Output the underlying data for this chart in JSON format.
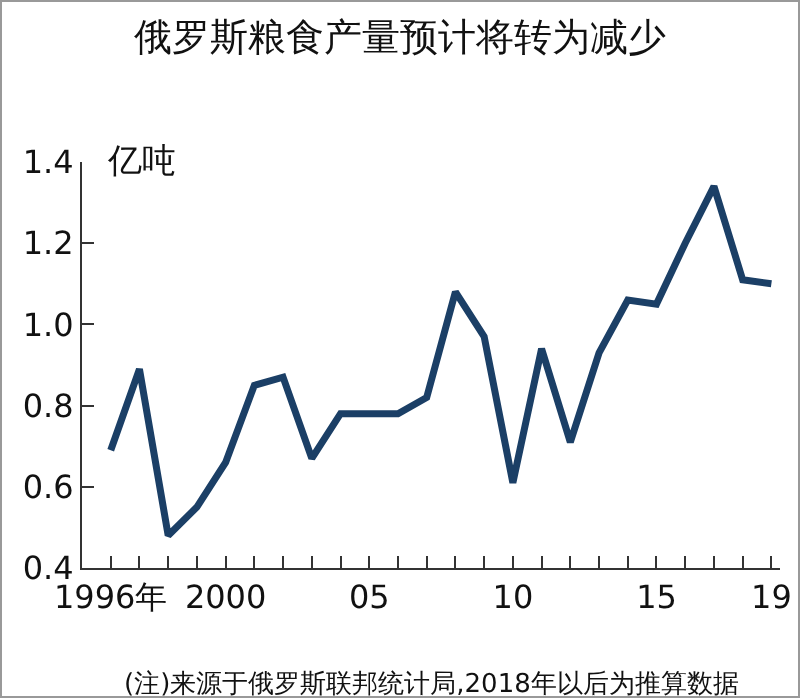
{
  "chart_data": {
    "type": "line",
    "title": "俄罗斯粮食产量预计将转为减少",
    "ylabel": "亿吨",
    "x": [
      1996,
      1997,
      1998,
      1999,
      2000,
      2001,
      2002,
      2003,
      2004,
      2005,
      2006,
      2007,
      2008,
      2009,
      2010,
      2011,
      2012,
      2013,
      2014,
      2015,
      2016,
      2017,
      2018,
      2019
    ],
    "series": [
      {
        "color": "#1b3f66",
        "values": [
          0.69,
          0.89,
          0.48,
          0.55,
          0.66,
          0.85,
          0.87,
          0.67,
          0.78,
          0.78,
          0.78,
          0.82,
          1.08,
          0.97,
          0.61,
          0.94,
          0.71,
          0.93,
          1.06,
          1.05,
          1.2,
          1.34,
          1.11,
          1.1
        ]
      }
    ],
    "xlim": [
      1995,
      2019.3
    ],
    "xticks": [
      {
        "value": 1996,
        "label": "1996年"
      },
      {
        "value": 1997,
        "label": null
      },
      {
        "value": 1998,
        "label": null
      },
      {
        "value": 1999,
        "label": null
      },
      {
        "value": 2000,
        "label": "2000"
      },
      {
        "value": 2001,
        "label": null
      },
      {
        "value": 2002,
        "label": null
      },
      {
        "value": 2003,
        "label": null
      },
      {
        "value": 2004,
        "label": null
      },
      {
        "value": 2005,
        "label": "05"
      },
      {
        "value": 2006,
        "label": null
      },
      {
        "value": 2007,
        "label": null
      },
      {
        "value": 2008,
        "label": null
      },
      {
        "value": 2009,
        "label": null
      },
      {
        "value": 2010,
        "label": "10"
      },
      {
        "value": 2011,
        "label": null
      },
      {
        "value": 2012,
        "label": null
      },
      {
        "value": 2013,
        "label": null
      },
      {
        "value": 2014,
        "label": null
      },
      {
        "value": 2015,
        "label": "15"
      },
      {
        "value": 2016,
        "label": null
      },
      {
        "value": 2017,
        "label": null
      },
      {
        "value": 2018,
        "label": null
      },
      {
        "value": 2019,
        "label": "19"
      }
    ],
    "ylim": [
      0.4,
      1.4
    ],
    "yticks": [
      0.4,
      0.6,
      0.8,
      {
        "value": 1,
        "label": "1.0"
      },
      1.2,
      1.4
    ],
    "grid": false,
    "marker": "none",
    "line_style": "solid",
    "annotations": [
      "(注)来源于俄罗斯联邦统计局,2018年以后为推算数据"
    ]
  }
}
